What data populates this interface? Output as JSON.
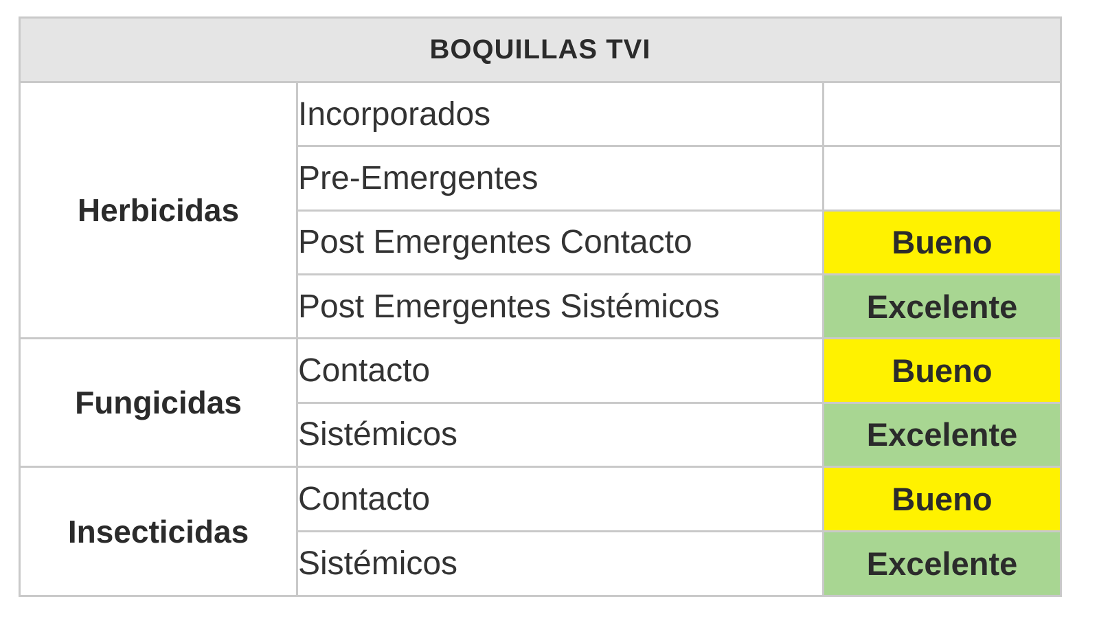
{
  "table": {
    "title": "BOQUILLAS TVI",
    "colors": {
      "header_bg": "#e5e5e5",
      "bueno_bg": "#fff200",
      "excelente_bg": "#a8d692",
      "border": "#c9c9c9"
    },
    "groups": [
      {
        "category": "Herbicidas",
        "rows": [
          {
            "label": "Incorporados",
            "rating": ""
          },
          {
            "label": "Pre-Emergentes",
            "rating": ""
          },
          {
            "label": "Post Emergentes Contacto",
            "rating": "Bueno"
          },
          {
            "label": "Post Emergentes Sistémicos",
            "rating": "Excelente"
          }
        ]
      },
      {
        "category": "Fungicidas",
        "rows": [
          {
            "label": "Contacto",
            "rating": "Bueno"
          },
          {
            "label": "Sistémicos",
            "rating": "Excelente"
          }
        ]
      },
      {
        "category": "Insecticidas",
        "rows": [
          {
            "label": "Contacto",
            "rating": "Bueno"
          },
          {
            "label": "Sistémicos",
            "rating": "Excelente"
          }
        ]
      }
    ]
  }
}
